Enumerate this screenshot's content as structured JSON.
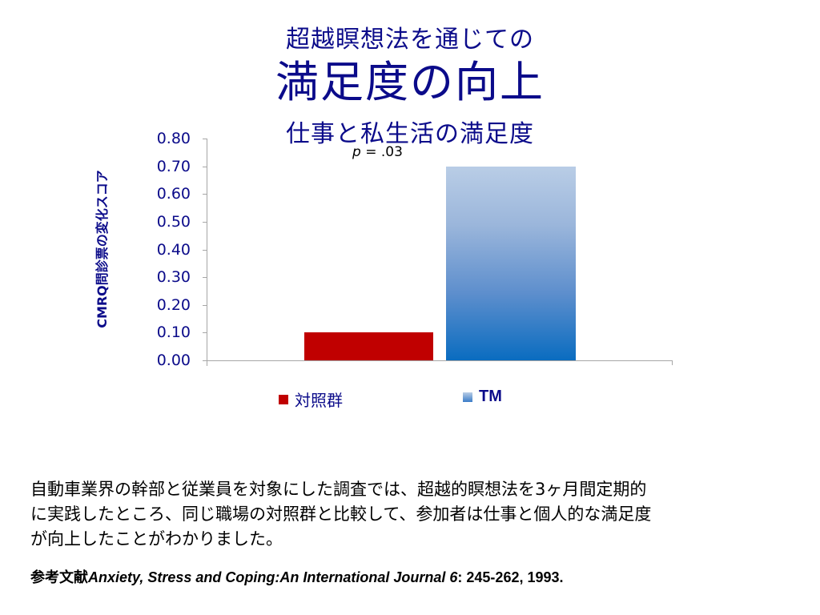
{
  "slide": {
    "title_line1": "超越瞑想法を通じての",
    "title_line2": "満足度の向上",
    "title_line3": "仕事と私生活の満足度",
    "p_value_prefix": "p",
    "p_value_rest": " = .03",
    "body_text_lines": [
      "自動車業界の幹部と従業員を対象にした調査では、超越的瞑想法を3ヶ月間定期的",
      "に実践したところ、同じ職場の対照群と比較して、参加者は仕事と個人的な満足度",
      "が向上したことがわかりました。"
    ],
    "reference": {
      "label": "参考文献",
      "journal": "Anxiety, Stress and Coping:An International Journal 6",
      "details": ": 245-262, 1993."
    }
  },
  "colors": {
    "title": "#0b0b8a",
    "control_bar": "#c00000",
    "tm_bar_top": "#b9cde6",
    "tm_bar_bottom": "#0a6cc0",
    "axis": "#a6a6a6"
  },
  "chart_data": {
    "type": "bar",
    "title": "仕事と私生活の満足度",
    "categories": [
      "対照群",
      "TM"
    ],
    "values": [
      0.1,
      0.7
    ],
    "series": [
      {
        "name": "対照群",
        "values": [
          0.1
        ],
        "color": "#c00000"
      },
      {
        "name": "TM",
        "values": [
          0.7
        ],
        "color": "gradient #b9cde6→#0a6cc0"
      }
    ],
    "xlabel": "",
    "ylabel": "CMRQ問診票の変化スコア",
    "ylim": [
      0.0,
      0.8
    ],
    "yticks": [
      "0.80",
      "0.70",
      "0.60",
      "0.50",
      "0.40",
      "0.30",
      "0.20",
      "0.10",
      "0.00"
    ],
    "annotations": [
      "p = .03"
    ],
    "grid": false,
    "legend_position": "bottom",
    "legend": [
      "対照群",
      "TM"
    ]
  }
}
